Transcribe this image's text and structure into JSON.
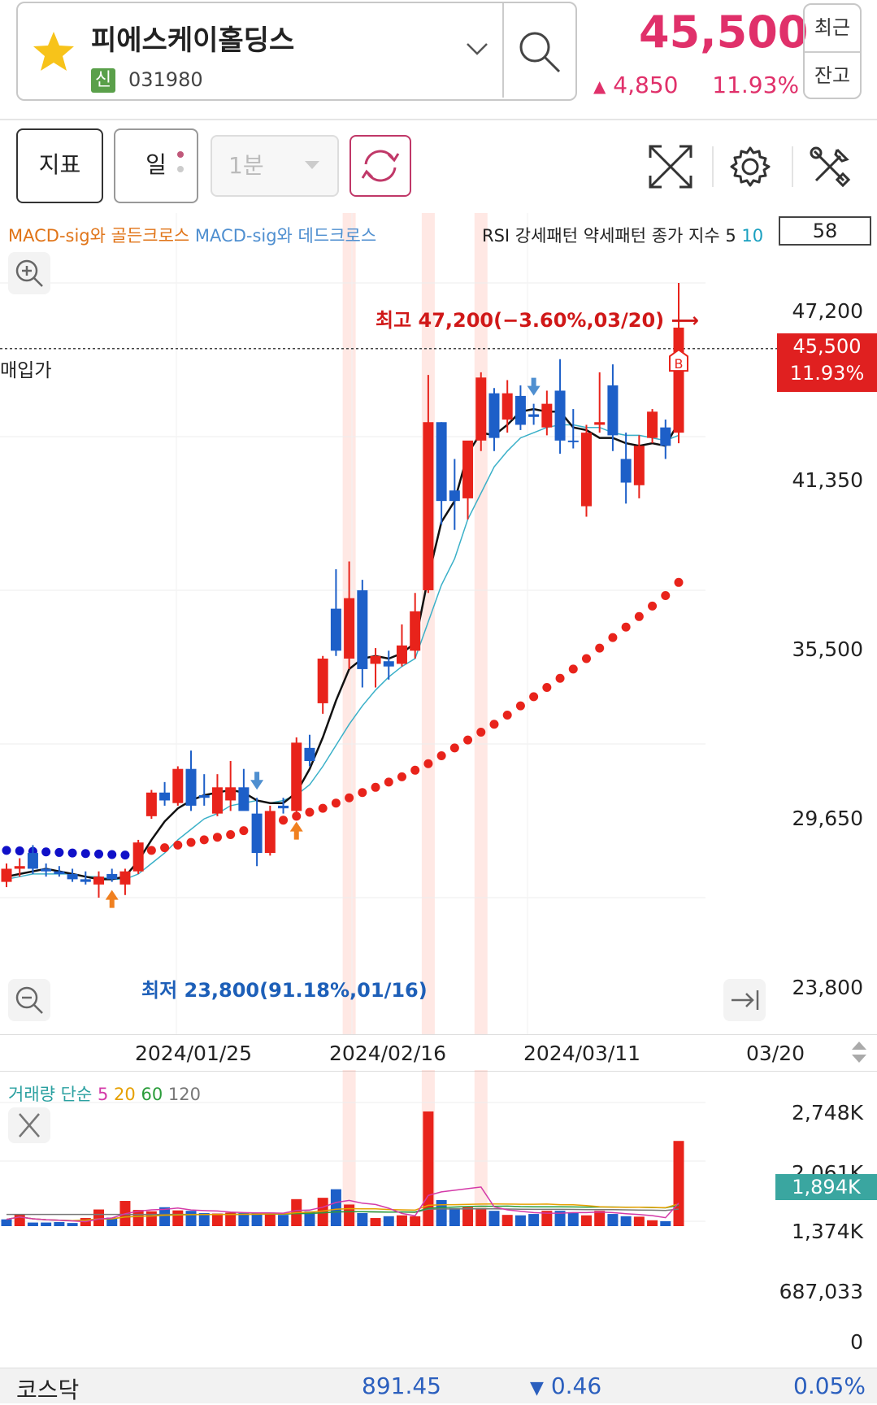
{
  "header": {
    "stock_name": "피에스케이홀딩스",
    "credit_badge": "신",
    "stock_code": "031980",
    "price": "45,500",
    "change_arrow": "▲",
    "change": "4,850",
    "change_pct": "11.93%",
    "recent_label": "최근",
    "balance_label": "잔고",
    "accent_color": "#e0306a"
  },
  "toolbar": {
    "indicator_label": "지표",
    "period_label": "일",
    "minute_label": "1분"
  },
  "chart": {
    "legend_golden": "MACD-sig와 골든크로스",
    "legend_dead": "MACD-sig와 데드크로스",
    "rsi_label_prefix": "RSI 강세패턴 약세패턴 종가 지수 5",
    "rsi_label_suffix": "10",
    "rsi_value": "58",
    "purchase_label": "매입가",
    "price_tag_price": "45,500",
    "price_tag_pct": "11.93%",
    "high_label": "최고 47,200(−3.60%,03/20) ⟶",
    "low_label": "최저 23,800(91.18%,01/16)",
    "y_ticks": [
      "47,200",
      "41,350",
      "35,500",
      "29,650",
      "23,800"
    ],
    "x_ticks": [
      "2024/01/25",
      "2024/02/16",
      "2024/03/11",
      "03/20"
    ],
    "buy_marker": "B"
  },
  "volume": {
    "legend_title": "거래량 단순",
    "legend_ma": [
      "5",
      "20",
      "60",
      "120"
    ],
    "tag_value": "1,894K",
    "y_ticks": [
      "2,748K",
      "2,061K",
      "1,374K",
      "687,033",
      "0"
    ]
  },
  "market": {
    "name": "코스닥",
    "value": "891.45",
    "change_arrow": "▼",
    "change": "0.46",
    "change_pct": "0.05%"
  },
  "chart_data": {
    "type": "candlestick",
    "period": "daily",
    "ylim": [
      23800,
      47200
    ],
    "candles": [
      {
        "o": 24900,
        "h": 25100,
        "l": 24200,
        "c": 24400,
        "dir": "up"
      },
      {
        "o": 24900,
        "h": 25300,
        "l": 24600,
        "c": 25000,
        "dir": "up"
      },
      {
        "o": 25500,
        "h": 25800,
        "l": 24700,
        "c": 24900,
        "dir": "down"
      },
      {
        "o": 24900,
        "h": 25100,
        "l": 24600,
        "c": 24800,
        "dir": "down"
      },
      {
        "o": 24800,
        "h": 25000,
        "l": 24600,
        "c": 24700,
        "dir": "down"
      },
      {
        "o": 24700,
        "h": 24900,
        "l": 24400,
        "c": 24500,
        "dir": "down"
      },
      {
        "o": 24500,
        "h": 24800,
        "l": 24300,
        "c": 24400,
        "dir": "down"
      },
      {
        "o": 24300,
        "h": 24800,
        "l": 23800,
        "c": 24600,
        "dir": "up"
      },
      {
        "o": 24700,
        "h": 24900,
        "l": 24400,
        "c": 24500,
        "dir": "down"
      },
      {
        "o": 24300,
        "h": 24900,
        "l": 23900,
        "c": 24800,
        "dir": "up"
      },
      {
        "o": 24800,
        "h": 26000,
        "l": 24700,
        "c": 25900,
        "dir": "up"
      },
      {
        "o": 26900,
        "h": 27900,
        "l": 26800,
        "c": 27800,
        "dir": "up"
      },
      {
        "o": 27800,
        "h": 28200,
        "l": 27300,
        "c": 27500,
        "dir": "down"
      },
      {
        "o": 27400,
        "h": 28800,
        "l": 27300,
        "c": 28700,
        "dir": "up"
      },
      {
        "o": 28700,
        "h": 29400,
        "l": 27100,
        "c": 27300,
        "dir": "down"
      },
      {
        "o": 27600,
        "h": 28500,
        "l": 27300,
        "c": 27700,
        "dir": "down"
      },
      {
        "o": 27000,
        "h": 28500,
        "l": 26900,
        "c": 28000,
        "dir": "up"
      },
      {
        "o": 27500,
        "h": 29000,
        "l": 27100,
        "c": 28000,
        "dir": "up"
      },
      {
        "o": 28000,
        "h": 28700,
        "l": 27300,
        "c": 27100,
        "dir": "down"
      },
      {
        "o": 27000,
        "h": 27600,
        "l": 25000,
        "c": 25500,
        "dir": "down"
      },
      {
        "o": 25500,
        "h": 27300,
        "l": 25400,
        "c": 27100,
        "dir": "up"
      },
      {
        "o": 27300,
        "h": 27600,
        "l": 27000,
        "c": 27200,
        "dir": "down"
      },
      {
        "o": 27100,
        "h": 29900,
        "l": 27000,
        "c": 29700,
        "dir": "up"
      },
      {
        "o": 29500,
        "h": 30000,
        "l": 28800,
        "c": 29000,
        "dir": "down"
      },
      {
        "o": 31200,
        "h": 33000,
        "l": 30800,
        "c": 32900,
        "dir": "up"
      },
      {
        "o": 33200,
        "h": 36300,
        "l": 33000,
        "c": 34800,
        "dir": "down"
      },
      {
        "o": 32900,
        "h": 36600,
        "l": 32500,
        "c": 35200,
        "dir": "up"
      },
      {
        "o": 35500,
        "h": 35900,
        "l": 31800,
        "c": 32500,
        "dir": "down"
      },
      {
        "o": 32700,
        "h": 33300,
        "l": 31800,
        "c": 33000,
        "dir": "up"
      },
      {
        "o": 32800,
        "h": 33200,
        "l": 32100,
        "c": 32600,
        "dir": "down"
      },
      {
        "o": 32700,
        "h": 34200,
        "l": 32600,
        "c": 33400,
        "dir": "up"
      },
      {
        "o": 33200,
        "h": 35400,
        "l": 32900,
        "c": 34700,
        "dir": "up"
      },
      {
        "o": 35500,
        "h": 43700,
        "l": 35400,
        "c": 41900,
        "dir": "up"
      },
      {
        "o": 41900,
        "h": 41900,
        "l": 38000,
        "c": 38900,
        "dir": "down"
      },
      {
        "o": 38900,
        "h": 40500,
        "l": 37800,
        "c": 39300,
        "dir": "down"
      },
      {
        "o": 39000,
        "h": 41000,
        "l": 38200,
        "c": 41200,
        "dir": "up"
      },
      {
        "o": 41200,
        "h": 43800,
        "l": 40800,
        "c": 43600,
        "dir": "up"
      },
      {
        "o": 41300,
        "h": 43200,
        "l": 40800,
        "c": 43000,
        "dir": "down"
      },
      {
        "o": 42000,
        "h": 43500,
        "l": 41500,
        "c": 43000,
        "dir": "up"
      },
      {
        "o": 42900,
        "h": 43300,
        "l": 41600,
        "c": 41800,
        "dir": "down"
      },
      {
        "o": 42100,
        "h": 42600,
        "l": 41800,
        "c": 42200,
        "dir": "down"
      },
      {
        "o": 41700,
        "h": 43100,
        "l": 41400,
        "c": 42600,
        "dir": "up"
      },
      {
        "o": 43100,
        "h": 44300,
        "l": 40700,
        "c": 41200,
        "dir": "down"
      },
      {
        "o": 41200,
        "h": 42400,
        "l": 40900,
        "c": 41200,
        "dir": "down"
      },
      {
        "o": 38700,
        "h": 41800,
        "l": 38300,
        "c": 41500,
        "dir": "up"
      },
      {
        "o": 41800,
        "h": 43800,
        "l": 41500,
        "c": 41900,
        "dir": "up"
      },
      {
        "o": 43300,
        "h": 44100,
        "l": 40800,
        "c": 41400,
        "dir": "down"
      },
      {
        "o": 40500,
        "h": 41500,
        "l": 38800,
        "c": 39600,
        "dir": "down"
      },
      {
        "o": 39500,
        "h": 41400,
        "l": 39000,
        "c": 41000,
        "dir": "up"
      },
      {
        "o": 41300,
        "h": 42400,
        "l": 41100,
        "c": 42300,
        "dir": "up"
      },
      {
        "o": 41700,
        "h": 42000,
        "l": 40500,
        "c": 41000,
        "dir": "down"
      },
      {
        "o": 41500,
        "h": 47200,
        "l": 41100,
        "c": 45500,
        "dir": "up"
      }
    ],
    "ma5": [
      24600,
      24700,
      24800,
      24900,
      24800,
      24700,
      24600,
      24500,
      24500,
      24600,
      25200,
      26000,
      26700,
      27200,
      27500,
      27700,
      27800,
      27900,
      27800,
      27500,
      27400,
      27400,
      27800,
      28700,
      29900,
      31300,
      32500,
      32900,
      33000,
      32900,
      33100,
      33500,
      36000,
      38100,
      38900,
      40700,
      41500,
      41400,
      41800,
      42300,
      42400,
      42300,
      42300,
      41700,
      41600,
      41300,
      41300,
      41100,
      41000,
      41100,
      41000,
      41900
    ],
    "ma10": [
      24500,
      24600,
      24700,
      24700,
      24700,
      24700,
      24600,
      24600,
      24500,
      24500,
      24700,
      25100,
      25500,
      26000,
      26400,
      26800,
      27000,
      27300,
      27400,
      27500,
      27400,
      27500,
      27700,
      28100,
      28800,
      29600,
      30400,
      31100,
      31700,
      32200,
      32600,
      32900,
      34300,
      35700,
      36700,
      38200,
      39200,
      40200,
      40800,
      41300,
      41500,
      41700,
      41800,
      41800,
      41700,
      41700,
      41500,
      41400,
      41400,
      41300,
      41200,
      41400
    ],
    "psar": [
      25600,
      25580,
      25560,
      25540,
      25520,
      25500,
      25480,
      25460,
      25440,
      25420,
      25400,
      25600,
      25700,
      25800,
      25900,
      26000,
      26100,
      26200,
      26350,
      26500,
      26600,
      26750,
      26900,
      27050,
      27200,
      27400,
      27600,
      27800,
      28000,
      28200,
      28400,
      28650,
      28900,
      29200,
      29500,
      29800,
      30100,
      30400,
      30750,
      31100,
      31450,
      31800,
      32150,
      32500,
      32900,
      33300,
      33700,
      34100,
      34500,
      34900,
      35300,
      35800
    ],
    "signals_buy": [
      8,
      22
    ],
    "signals_sell": [
      19,
      40
    ],
    "highlight_bars": [
      26,
      32,
      36
    ],
    "volume": [
      150,
      260,
      80,
      80,
      90,
      70,
      180,
      370,
      190,
      560,
      360,
      330,
      420,
      350,
      340,
      290,
      280,
      300,
      290,
      300,
      300,
      250,
      600,
      330,
      630,
      820,
      480,
      290,
      180,
      220,
      240,
      220,
      2550,
      580,
      400,
      420,
      400,
      340,
      250,
      240,
      270,
      340,
      340,
      310,
      240,
      340,
      270,
      220,
      210,
      130,
      110,
      1894
    ],
    "vol_dir": [
      "down",
      "up",
      "down",
      "down",
      "down",
      "down",
      "up",
      "up",
      "down",
      "up",
      "up",
      "up",
      "down",
      "up",
      "down",
      "down",
      "up",
      "up",
      "down",
      "down",
      "up",
      "down",
      "up",
      "down",
      "up",
      "down",
      "up",
      "down",
      "up",
      "down",
      "up",
      "up",
      "up",
      "down",
      "down",
      "up",
      "up",
      "down",
      "up",
      "down",
      "down",
      "up",
      "down",
      "down",
      "up",
      "up",
      "down",
      "down",
      "up",
      "up",
      "down",
      "up"
    ],
    "vol_ylim": [
      0,
      2748
    ]
  }
}
